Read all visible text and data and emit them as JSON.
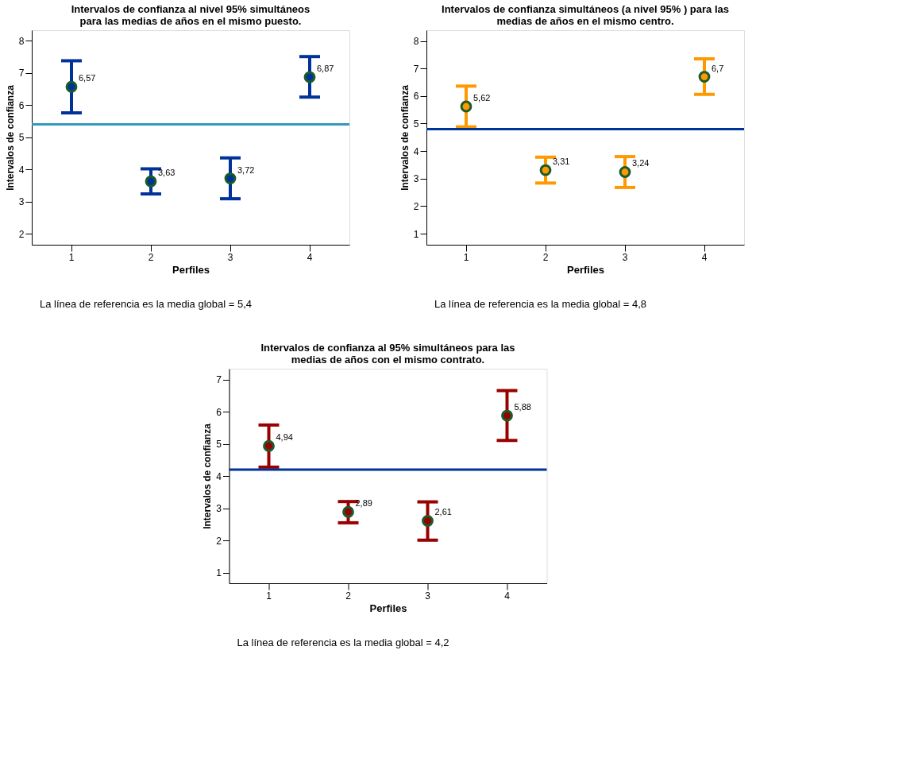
{
  "chart_data": [
    {
      "type": "scatter",
      "title": "Intervalos de confianza al nivel 95% simultáneos\npara las medias de años en el mismo puesto.",
      "xlabel": "Perfiles",
      "ylabel": "Intervalos de confianza",
      "categories": [
        "1",
        "2",
        "3",
        "4"
      ],
      "ylim": [
        1.66,
        8.33
      ],
      "yticks": [
        2,
        3,
        4,
        5,
        6,
        7,
        8
      ],
      "marker": "circle",
      "grid": false,
      "series": [
        {
          "color": "#003399",
          "values": [
            6.57,
            3.63,
            3.72,
            6.87
          ],
          "errors": [
            [
              5.76,
              7.38
            ],
            [
              3.24,
              4.02
            ],
            [
              3.09,
              4.36
            ],
            [
              6.25,
              7.51
            ]
          ],
          "value_labels": [
            "6,57",
            "3,63",
            "3,72",
            "6,87"
          ]
        }
      ],
      "ref_lines": [
        {
          "axis": "y",
          "value": 5.4,
          "color": "#3399bb"
        }
      ],
      "annotations": [
        "La línea de referencia es la media global = 5,4"
      ]
    },
    {
      "type": "scatter",
      "title": "Intervalos de confianza simultáneos (a nivel 95% ) para las\nmedias de años en el mismo centro.",
      "xlabel": "Perfiles",
      "ylabel": "Intervalos de confianza",
      "categories": [
        "1",
        "2",
        "3",
        "4"
      ],
      "ylim": [
        0.6,
        8.39
      ],
      "yticks": [
        1,
        2,
        3,
        4,
        5,
        6,
        7,
        8
      ],
      "marker": "circle",
      "grid": false,
      "series": [
        {
          "color": "#ff9900",
          "values": [
            5.62,
            3.31,
            3.24,
            6.7
          ],
          "errors": [
            [
              4.88,
              6.36
            ],
            [
              2.84,
              3.78
            ],
            [
              2.68,
              3.8
            ],
            [
              6.06,
              7.35
            ]
          ],
          "value_labels": [
            "5,62",
            "3,31",
            "3,24",
            "6,7"
          ]
        }
      ],
      "ref_lines": [
        {
          "axis": "y",
          "value": 4.8,
          "color": "#003399"
        }
      ],
      "annotations": [
        "La línea de referencia es la media global = 4,8"
      ]
    },
    {
      "type": "scatter",
      "title": "Intervalos de confianza al 95% simultáneos para las\nmedias de años con el mismo contrato.",
      "xlabel": "Perfiles",
      "ylabel": "Intervalos de confianza",
      "categories": [
        "1",
        "2",
        "3",
        "4"
      ],
      "ylim": [
        0.67,
        7.34
      ],
      "yticks": [
        1,
        2,
        3,
        4,
        5,
        6,
        7
      ],
      "marker": "circle",
      "grid": false,
      "series": [
        {
          "color": "#990000",
          "values": [
            4.94,
            2.89,
            2.61,
            5.88
          ],
          "errors": [
            [
              4.28,
              5.59
            ],
            [
              2.55,
              3.21
            ],
            [
              2.01,
              3.2
            ],
            [
              5.11,
              6.66
            ]
          ],
          "value_labels": [
            "4,94",
            "2,89",
            "2,61",
            "5,88"
          ]
        }
      ],
      "ref_lines": [
        {
          "axis": "y",
          "value": 4.2,
          "color": "#003399"
        }
      ],
      "annotations": [
        "La línea de referencia es la media global = 4,2"
      ]
    }
  ]
}
